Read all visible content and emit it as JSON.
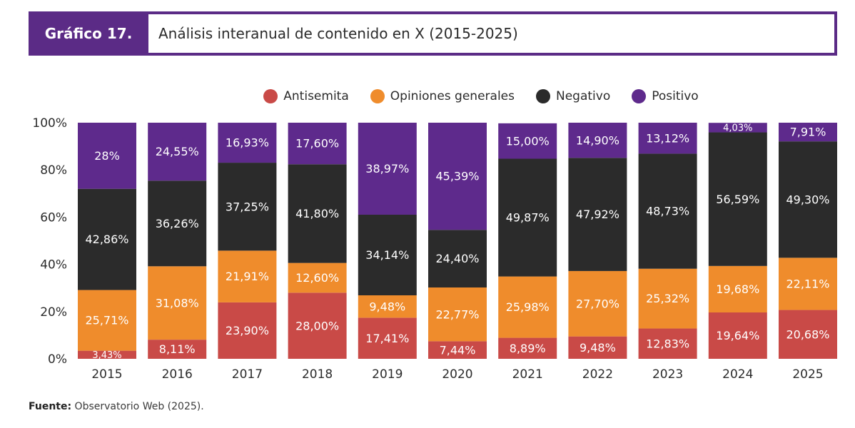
{
  "header": {
    "label": "Gráfico 17.",
    "title": "Análisis interanual de contenido en X (2015-2025)"
  },
  "source": {
    "label": "Fuente:",
    "text": "Observatorio Web (2025)."
  },
  "chart_data": {
    "type": "bar",
    "stacked": true,
    "categories": [
      "2015",
      "2016",
      "2017",
      "2018",
      "2019",
      "2020",
      "2021",
      "2022",
      "2023",
      "2024",
      "2025"
    ],
    "y_ticks": [
      "0%",
      "20%",
      "40%",
      "60%",
      "80%",
      "100%"
    ],
    "ylim": [
      0,
      100
    ],
    "grid": false,
    "legend_position": "top-center",
    "series": [
      {
        "name": "Antisemita",
        "color": "#c94a47",
        "values": [
          3.43,
          8.11,
          23.9,
          28.0,
          17.41,
          7.44,
          8.89,
          9.48,
          12.83,
          19.64,
          20.68
        ],
        "labels": [
          "3,43%",
          "8,11%",
          "23,90%",
          "28,00%",
          "17,41%",
          "7,44%",
          "8,89%",
          "9,48%",
          "12,83%",
          "19,64%",
          "20,68%"
        ]
      },
      {
        "name": "Opiniones generales",
        "color": "#ef8c2c",
        "values": [
          25.71,
          31.08,
          21.91,
          12.6,
          9.48,
          22.77,
          25.98,
          27.7,
          25.32,
          19.68,
          22.11
        ],
        "labels": [
          "25,71%",
          "31,08%",
          "21,91%",
          "12,60%",
          "9,48%",
          "22,77%",
          "25,98%",
          "27,70%",
          "25,32%",
          "19,68%",
          "22,11%"
        ]
      },
      {
        "name": "Negativo",
        "color": "#2b2b2b",
        "values": [
          42.86,
          36.26,
          37.25,
          41.8,
          34.14,
          24.4,
          49.87,
          47.92,
          48.73,
          56.59,
          49.3
        ],
        "labels": [
          "42,86%",
          "36,26%",
          "37,25%",
          "41,80%",
          "34,14%",
          "24,40%",
          "49,87%",
          "47,92%",
          "48,73%",
          "56,59%",
          "49,30%"
        ]
      },
      {
        "name": "Positivo",
        "color": "#5e2a8c",
        "values": [
          28,
          24.55,
          16.93,
          17.6,
          38.97,
          45.39,
          15.0,
          14.9,
          13.12,
          4.03,
          7.91
        ],
        "labels": [
          "28%",
          "24,55%",
          "16,93%",
          "17,60%",
          "38,97%",
          "45,39%",
          "15,00%",
          "14,90%",
          "13,12%",
          "4,03%",
          "7,91%"
        ]
      }
    ]
  }
}
